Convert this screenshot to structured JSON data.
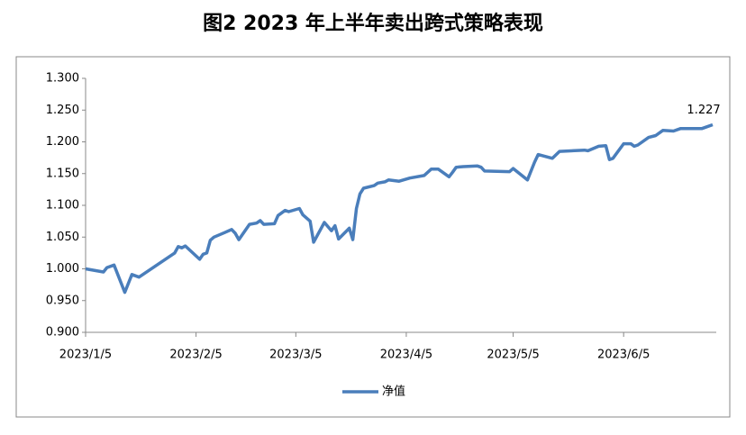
{
  "chart_data": {
    "type": "line",
    "title": "图2  2023 年上半年卖出跨式策略表现",
    "x": [
      "2023/1/5",
      "2023/1/10",
      "2023/1/11",
      "2023/1/13",
      "2023/1/16",
      "2023/1/18",
      "2023/1/20",
      "2023/1/30",
      "2023/1/31",
      "2023/2/1",
      "2023/2/2",
      "2023/2/6",
      "2023/2/7",
      "2023/2/8",
      "2023/2/9",
      "2023/2/10",
      "2023/2/13",
      "2023/2/15",
      "2023/2/16",
      "2023/2/17",
      "2023/2/20",
      "2023/2/22",
      "2023/2/23",
      "2023/2/24",
      "2023/2/27",
      "2023/2/28",
      "2023/3/2",
      "2023/3/3",
      "2023/3/6",
      "2023/3/7",
      "2023/3/9",
      "2023/3/10",
      "2023/3/13",
      "2023/3/15",
      "2023/3/16",
      "2023/3/17",
      "2023/3/20",
      "2023/3/21",
      "2023/3/22",
      "2023/3/23",
      "2023/3/24",
      "2023/3/27",
      "2023/3/28",
      "2023/3/30",
      "2023/3/31",
      "2023/4/3",
      "2023/4/6",
      "2023/4/10",
      "2023/4/12",
      "2023/4/14",
      "2023/4/17",
      "2023/4/18",
      "2023/4/19",
      "2023/4/21",
      "2023/4/25",
      "2023/4/26",
      "2023/4/27",
      "2023/5/4",
      "2023/5/5",
      "2023/5/9",
      "2023/5/11",
      "2023/5/12",
      "2023/5/16",
      "2023/5/18",
      "2023/5/25",
      "2023/5/26",
      "2023/5/29",
      "2023/5/31",
      "2023/6/1",
      "2023/6/2",
      "2023/6/5",
      "2023/6/7",
      "2023/6/8",
      "2023/6/9",
      "2023/6/12",
      "2023/6/14",
      "2023/6/16",
      "2023/6/19",
      "2023/6/21",
      "2023/6/27",
      "2023/6/28",
      "2023/6/30"
    ],
    "series": [
      {
        "name": "净值",
        "color": "#4a7ebb",
        "values": [
          1.0,
          0.995,
          1.002,
          1.006,
          0.963,
          0.991,
          0.987,
          1.025,
          1.035,
          1.033,
          1.036,
          1.015,
          1.023,
          1.025,
          1.045,
          1.05,
          1.057,
          1.062,
          1.056,
          1.046,
          1.07,
          1.072,
          1.076,
          1.07,
          1.071,
          1.084,
          1.092,
          1.09,
          1.095,
          1.085,
          1.075,
          1.042,
          1.073,
          1.06,
          1.068,
          1.047,
          1.064,
          1.046,
          1.095,
          1.118,
          1.127,
          1.131,
          1.135,
          1.137,
          1.14,
          1.138,
          1.143,
          1.147,
          1.157,
          1.157,
          1.145,
          1.152,
          1.16,
          1.161,
          1.162,
          1.16,
          1.154,
          1.153,
          1.158,
          1.14,
          1.168,
          1.18,
          1.174,
          1.185,
          1.187,
          1.186,
          1.193,
          1.194,
          1.172,
          1.174,
          1.197,
          1.197,
          1.193,
          1.195,
          1.207,
          1.21,
          1.218,
          1.217,
          1.221,
          1.221,
          1.223,
          1.227
        ],
        "value_labels": [
          null,
          null,
          null,
          null,
          null,
          null,
          null,
          null,
          null,
          null,
          null,
          null,
          null,
          null,
          null,
          null,
          null,
          null,
          null,
          null,
          null,
          null,
          null,
          null,
          null,
          null,
          null,
          null,
          null,
          null,
          null,
          null,
          null,
          null,
          null,
          null,
          null,
          null,
          null,
          null,
          null,
          null,
          null,
          null,
          null,
          null,
          null,
          null,
          null,
          null,
          null,
          null,
          null,
          null,
          null,
          null,
          null,
          null,
          null,
          null,
          null,
          null,
          null,
          null,
          null,
          null,
          null,
          null,
          null,
          null,
          null,
          null,
          null,
          null,
          null,
          null,
          null,
          null,
          null,
          null,
          null,
          "1.227"
        ]
      }
    ],
    "xlim": [
      "2023/1/5",
      "2023/7/1"
    ],
    "xticks": [
      "2023/1/5",
      "2023/2/5",
      "2023/3/5",
      "2023/4/5",
      "2023/5/5",
      "2023/6/5"
    ],
    "ylim": [
      0.9,
      1.3
    ],
    "yticks": [
      {
        "value": 0.9,
        "label": "0.900"
      },
      {
        "value": 0.95,
        "label": "0.950"
      },
      {
        "value": 1.0,
        "label": "1.000"
      },
      {
        "value": 1.05,
        "label": "1.050"
      },
      {
        "value": 1.1,
        "label": "1.100"
      },
      {
        "value": 1.15,
        "label": "1.150"
      },
      {
        "value": 1.2,
        "label": "1.200"
      },
      {
        "value": 1.25,
        "label": "1.250"
      },
      {
        "value": 1.3,
        "label": "1.300"
      }
    ],
    "grid": false
  }
}
